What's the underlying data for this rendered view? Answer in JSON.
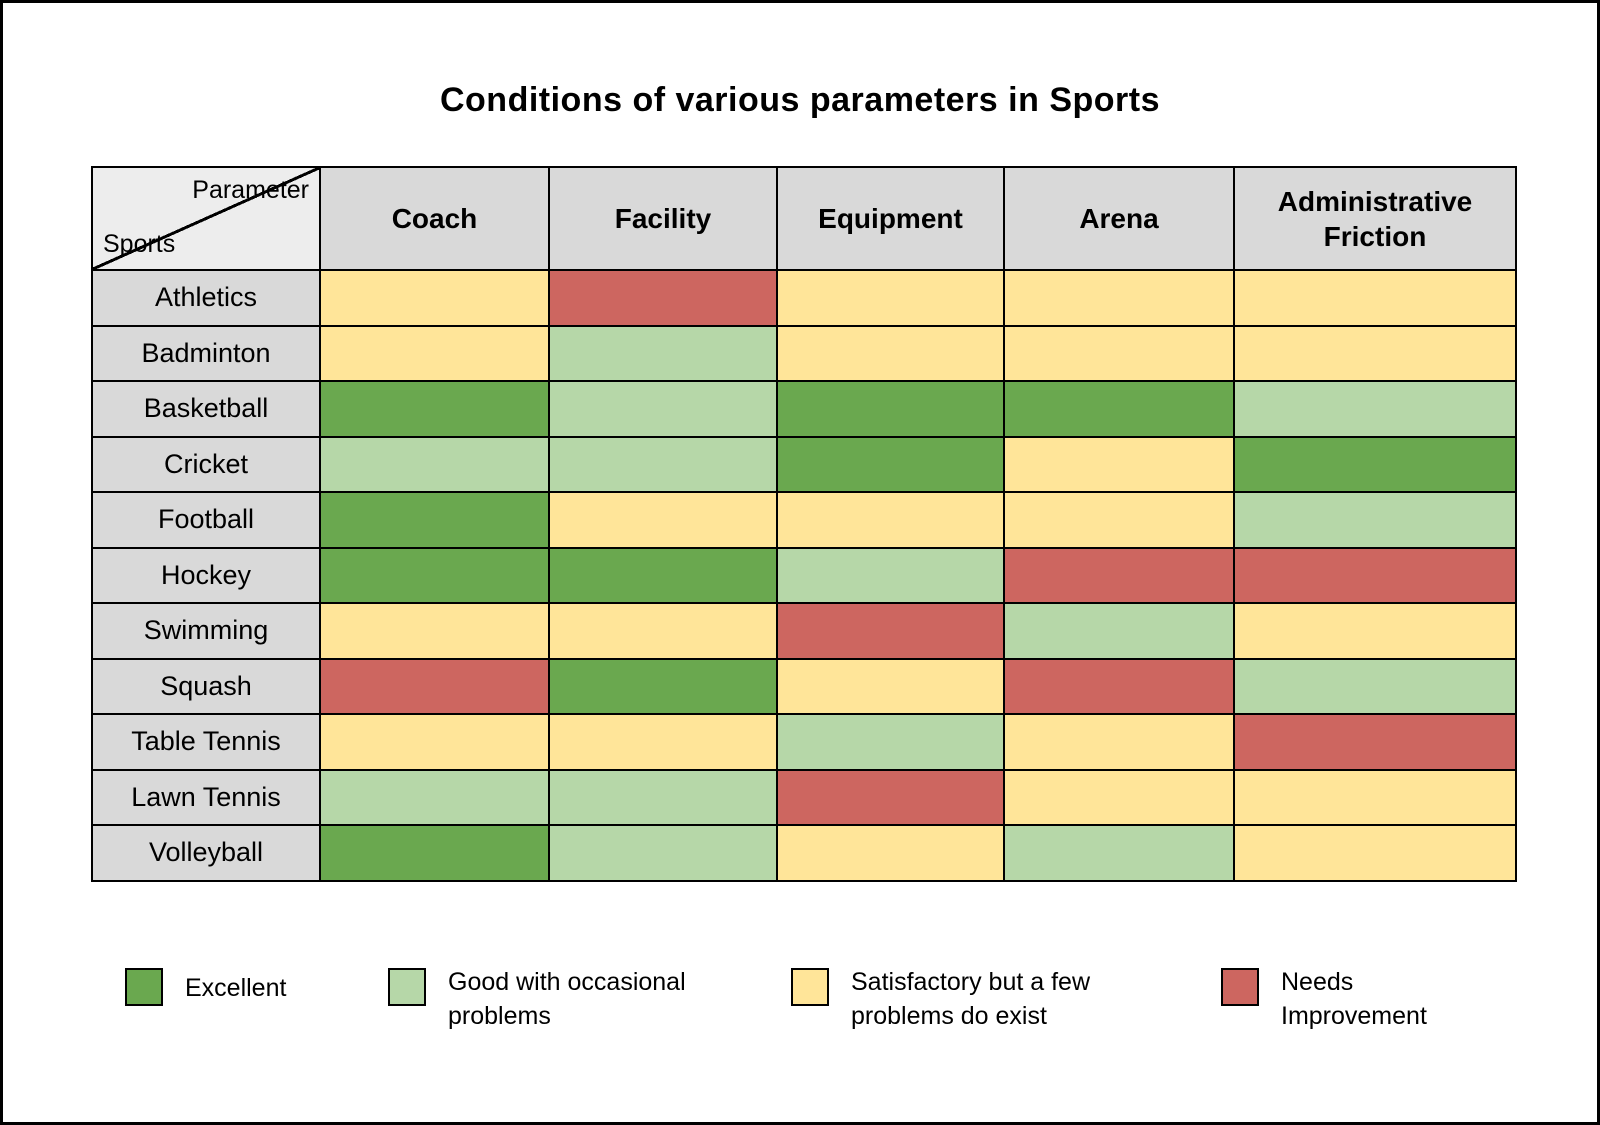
{
  "chart_data": {
    "type": "heatmap",
    "title": "Conditions of various parameters in Sports",
    "corner": {
      "top_right": "Parameter",
      "bottom_left": "Sports"
    },
    "columns": [
      "Coach",
      "Facility",
      "Equipment",
      "Arena",
      "Administrative Friction"
    ],
    "rows": [
      "Athletics",
      "Badminton",
      "Basketball",
      "Cricket",
      "Football",
      "Hockey",
      "Swimming",
      "Squash",
      "Table Tennis",
      "Lawn Tennis",
      "Volleyball"
    ],
    "values": [
      [
        "S",
        "N",
        "S",
        "S",
        "S"
      ],
      [
        "S",
        "G",
        "S",
        "S",
        "S"
      ],
      [
        "E",
        "G",
        "E",
        "E",
        "G"
      ],
      [
        "G",
        "G",
        "E",
        "S",
        "E"
      ],
      [
        "E",
        "S",
        "S",
        "S",
        "G"
      ],
      [
        "E",
        "E",
        "G",
        "N",
        "N"
      ],
      [
        "S",
        "S",
        "N",
        "G",
        "S"
      ],
      [
        "N",
        "E",
        "S",
        "N",
        "G"
      ],
      [
        "S",
        "S",
        "G",
        "S",
        "N"
      ],
      [
        "G",
        "G",
        "N",
        "S",
        "S"
      ],
      [
        "E",
        "G",
        "S",
        "G",
        "S"
      ]
    ],
    "legend": [
      {
        "code": "E",
        "label": "Excellent",
        "color": "#6aa84f"
      },
      {
        "code": "G",
        "label": "Good with occasional problems",
        "color": "#b6d7a8"
      },
      {
        "code": "S",
        "label": "Satisfactory but a few problems do exist",
        "color": "#ffe599"
      },
      {
        "code": "N",
        "label": "Needs Improvement",
        "color": "#cd6660"
      }
    ],
    "layout": {
      "grid": "table",
      "legend_position": "bottom"
    }
  }
}
